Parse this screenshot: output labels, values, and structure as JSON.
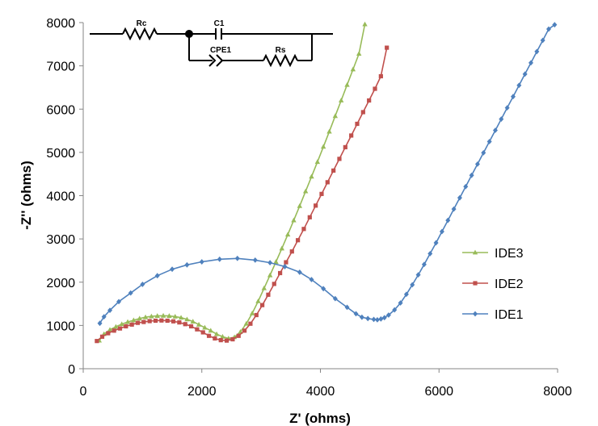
{
  "chart_data": {
    "type": "scatter",
    "xlabel": "Z' (ohms)",
    "ylabel": "-Z'' (ohms)",
    "xlim": [
      0,
      8000
    ],
    "ylim": [
      0,
      8000
    ],
    "xticks": [
      "0",
      "2000",
      "4000",
      "6000",
      "8000"
    ],
    "yticks": [
      "0",
      "1000",
      "2000",
      "3000",
      "4000",
      "5000",
      "6000",
      "7000",
      "8000"
    ],
    "grid": false,
    "legend": "right",
    "circuit_labels": {
      "rc": "Rc",
      "c1": "C1",
      "cpe1": "CPE1",
      "rs": "Rs"
    },
    "series": [
      {
        "name": "IDE3",
        "color": "#98bb59",
        "marker": "triangle",
        "x": [
          270,
          350,
          450,
          550,
          650,
          750,
          850,
          950,
          1050,
          1150,
          1250,
          1350,
          1450,
          1550,
          1650,
          1750,
          1850,
          1950,
          2050,
          2150,
          2250,
          2350,
          2450,
          2550,
          2650,
          2750,
          2850,
          2950,
          3050,
          3150,
          3250,
          3350,
          3450,
          3550,
          3650,
          3750,
          3850,
          3950,
          4050,
          4150,
          4250,
          4350,
          4450,
          4550,
          4650,
          4750
        ],
        "y": [
          650,
          800,
          900,
          970,
          1030,
          1080,
          1120,
          1160,
          1190,
          1210,
          1220,
          1225,
          1220,
          1205,
          1180,
          1140,
          1090,
          1020,
          950,
          880,
          800,
          740,
          700,
          730,
          850,
          1040,
          1280,
          1560,
          1860,
          2160,
          2470,
          2780,
          3100,
          3430,
          3760,
          4100,
          4440,
          4780,
          5130,
          5480,
          5840,
          6200,
          6560,
          6920,
          7280,
          7960
        ]
      },
      {
        "name": "IDE2",
        "color": "#c0504d",
        "marker": "square",
        "x": [
          230,
          320,
          420,
          520,
          620,
          720,
          820,
          920,
          1020,
          1120,
          1220,
          1320,
          1420,
          1520,
          1620,
          1720,
          1820,
          1920,
          2020,
          2120,
          2220,
          2320,
          2420,
          2520,
          2620,
          2720,
          2820,
          2920,
          3020,
          3120,
          3220,
          3320,
          3420,
          3520,
          3620,
          3720,
          3820,
          3920,
          4020,
          4120,
          4220,
          4320,
          4420,
          4520,
          4620,
          4720,
          4820,
          4920,
          5020,
          5120
        ],
        "y": [
          640,
          740,
          820,
          880,
          930,
          980,
          1020,
          1060,
          1080,
          1100,
          1110,
          1115,
          1110,
          1095,
          1070,
          1030,
          980,
          910,
          840,
          760,
          700,
          660,
          650,
          680,
          760,
          880,
          1040,
          1240,
          1470,
          1710,
          1960,
          2210,
          2460,
          2710,
          2970,
          3230,
          3500,
          3770,
          4040,
          4310,
          4580,
          4850,
          5120,
          5390,
          5660,
          5930,
          6200,
          6470,
          6760,
          7420
        ]
      },
      {
        "name": "IDE1",
        "color": "#4f81bd",
        "marker": "diamond",
        "x": [
          280,
          350,
          450,
          600,
          800,
          1000,
          1250,
          1500,
          1750,
          2000,
          2300,
          2600,
          2900,
          3150,
          3400,
          3650,
          3850,
          4050,
          4250,
          4450,
          4600,
          4700,
          4800,
          4900,
          4960,
          5020,
          5080,
          5150,
          5250,
          5350,
          5450,
          5550,
          5650,
          5750,
          5850,
          5950,
          6050,
          6150,
          6250,
          6350,
          6450,
          6550,
          6650,
          6750,
          6850,
          6950,
          7050,
          7150,
          7250,
          7350,
          7450,
          7550,
          7650,
          7750,
          7850,
          7950
        ],
        "y": [
          1050,
          1200,
          1350,
          1550,
          1750,
          1950,
          2150,
          2300,
          2400,
          2470,
          2530,
          2550,
          2510,
          2450,
          2360,
          2230,
          2060,
          1850,
          1620,
          1420,
          1270,
          1190,
          1160,
          1140,
          1130,
          1150,
          1180,
          1240,
          1360,
          1520,
          1720,
          1940,
          2170,
          2410,
          2660,
          2910,
          3170,
          3430,
          3690,
          3950,
          4210,
          4470,
          4730,
          4990,
          5250,
          5510,
          5770,
          6030,
          6290,
          6550,
          6810,
          7070,
          7330,
          7590,
          7850,
          7950
        ]
      }
    ]
  }
}
